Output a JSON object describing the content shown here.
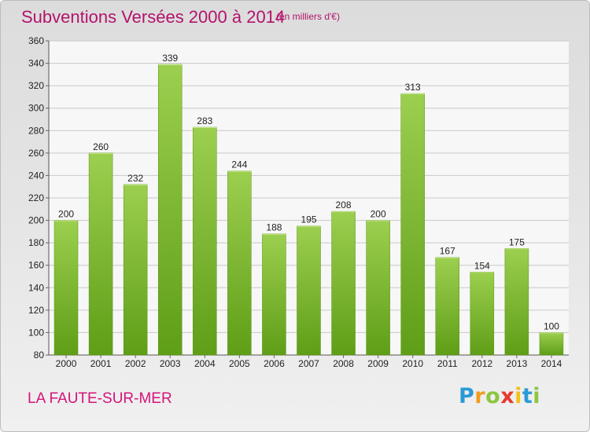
{
  "header": {
    "title": "Subventions Versées 2000 à 2014",
    "subtitle": "(en milliers d'€)"
  },
  "footer": {
    "commune": "LA FAUTE-SUR-MER",
    "logo": {
      "letters": [
        "P",
        "r",
        "o",
        "x",
        "i",
        "t",
        "i"
      ],
      "colors": [
        "#2a9ad6",
        "#f29b1d",
        "#8cc63f",
        "#e63a2e",
        "#f2c21b",
        "#2a9ad6",
        "#8cc63f"
      ]
    }
  },
  "chart_data": {
    "type": "bar",
    "categories": [
      "2000",
      "2001",
      "2002",
      "2003",
      "2004",
      "2005",
      "2006",
      "2007",
      "2008",
      "2009",
      "2010",
      "2011",
      "2012",
      "2013",
      "2014"
    ],
    "values": [
      200,
      260,
      232,
      339,
      283,
      244,
      188,
      195,
      208,
      200,
      313,
      167,
      154,
      175,
      100
    ],
    "title": "Subventions Versées 2000 à 2014",
    "xlabel": "",
    "ylabel": "",
    "ylim": [
      80,
      360
    ],
    "yticks": [
      80,
      100,
      120,
      140,
      160,
      180,
      200,
      220,
      240,
      260,
      280,
      300,
      320,
      340,
      360
    ],
    "grid": true,
    "bar_color_top": "#9ccf4f",
    "bar_color_bottom": "#5f9e17"
  }
}
